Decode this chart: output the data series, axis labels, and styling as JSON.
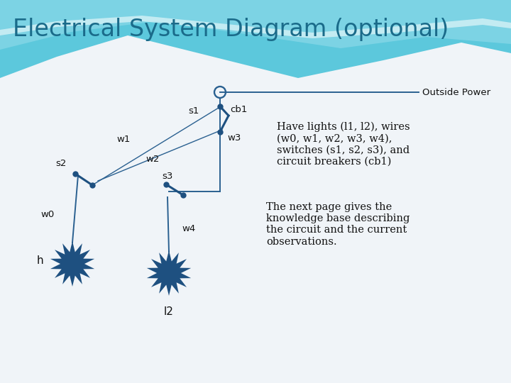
{
  "title": "Electrical System Diagram (optional)",
  "title_color": "#1a6b8a",
  "title_fontsize": 24,
  "outside_power_label": "Outside Power",
  "cb1_label": "cb1",
  "s1_label": "s1",
  "s2_label": "s2",
  "s3_label": "s3",
  "w0_label": "w0",
  "w1_label": "w1",
  "w2_label": "w2",
  "w3_label": "w3",
  "w4_label": "w4",
  "h_label": "h",
  "l2_label": "l2",
  "wire_color": "#2a6090",
  "component_color": "#1e5080",
  "label_color": "#111111",
  "annotation_text1": "Have lights (l1, l2), wires\n(w0, w1, w2, w3, w4),\nswitches (s1, s2, s3), and\ncircuit breakers (cb1)",
  "annotation_text2": "The next page gives the\nknowledge base describing\nthe circuit and the current\nobservations.",
  "annotation_fontsize": 10.5,
  "bg_color": "#f0f4f8",
  "wave1_color": "#5cc8dc",
  "wave2_color": "#88d8e8",
  "wave_white": "#c8eef5"
}
